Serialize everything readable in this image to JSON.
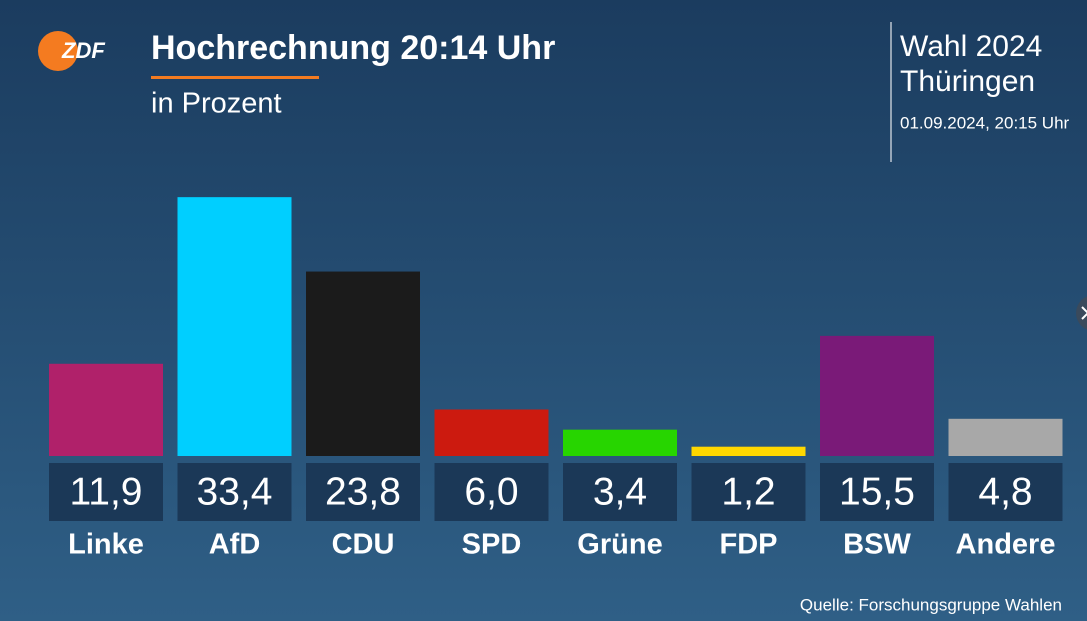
{
  "logo": "ZDF",
  "chart_data": {
    "type": "bar",
    "title": "Hochrechnung 20:14 Uhr",
    "subtitle": "in Prozent",
    "categories": [
      "Linke",
      "AfD",
      "CDU",
      "SPD",
      "Grüne",
      "FDP",
      "BSW",
      "Andere"
    ],
    "values": [
      11.9,
      33.4,
      23.8,
      6.0,
      3.4,
      1.2,
      15.5,
      4.8
    ],
    "value_labels": [
      "11,9",
      "33,4",
      "23,8",
      "6,0",
      "3,4",
      "1,2",
      "15,5",
      "4,8"
    ],
    "colors": [
      "#b0216a",
      "#00cfff",
      "#1b1b1b",
      "#cc1a0f",
      "#27d500",
      "#ffd800",
      "#7a1a78",
      "#a8a8a8"
    ]
  },
  "header": {
    "election": "Wahl 2024",
    "region": "Thüringen",
    "timestamp": "01.09.2024, 20:15 Uhr"
  },
  "source": "Quelle: Forschungsgruppe Wahlen"
}
